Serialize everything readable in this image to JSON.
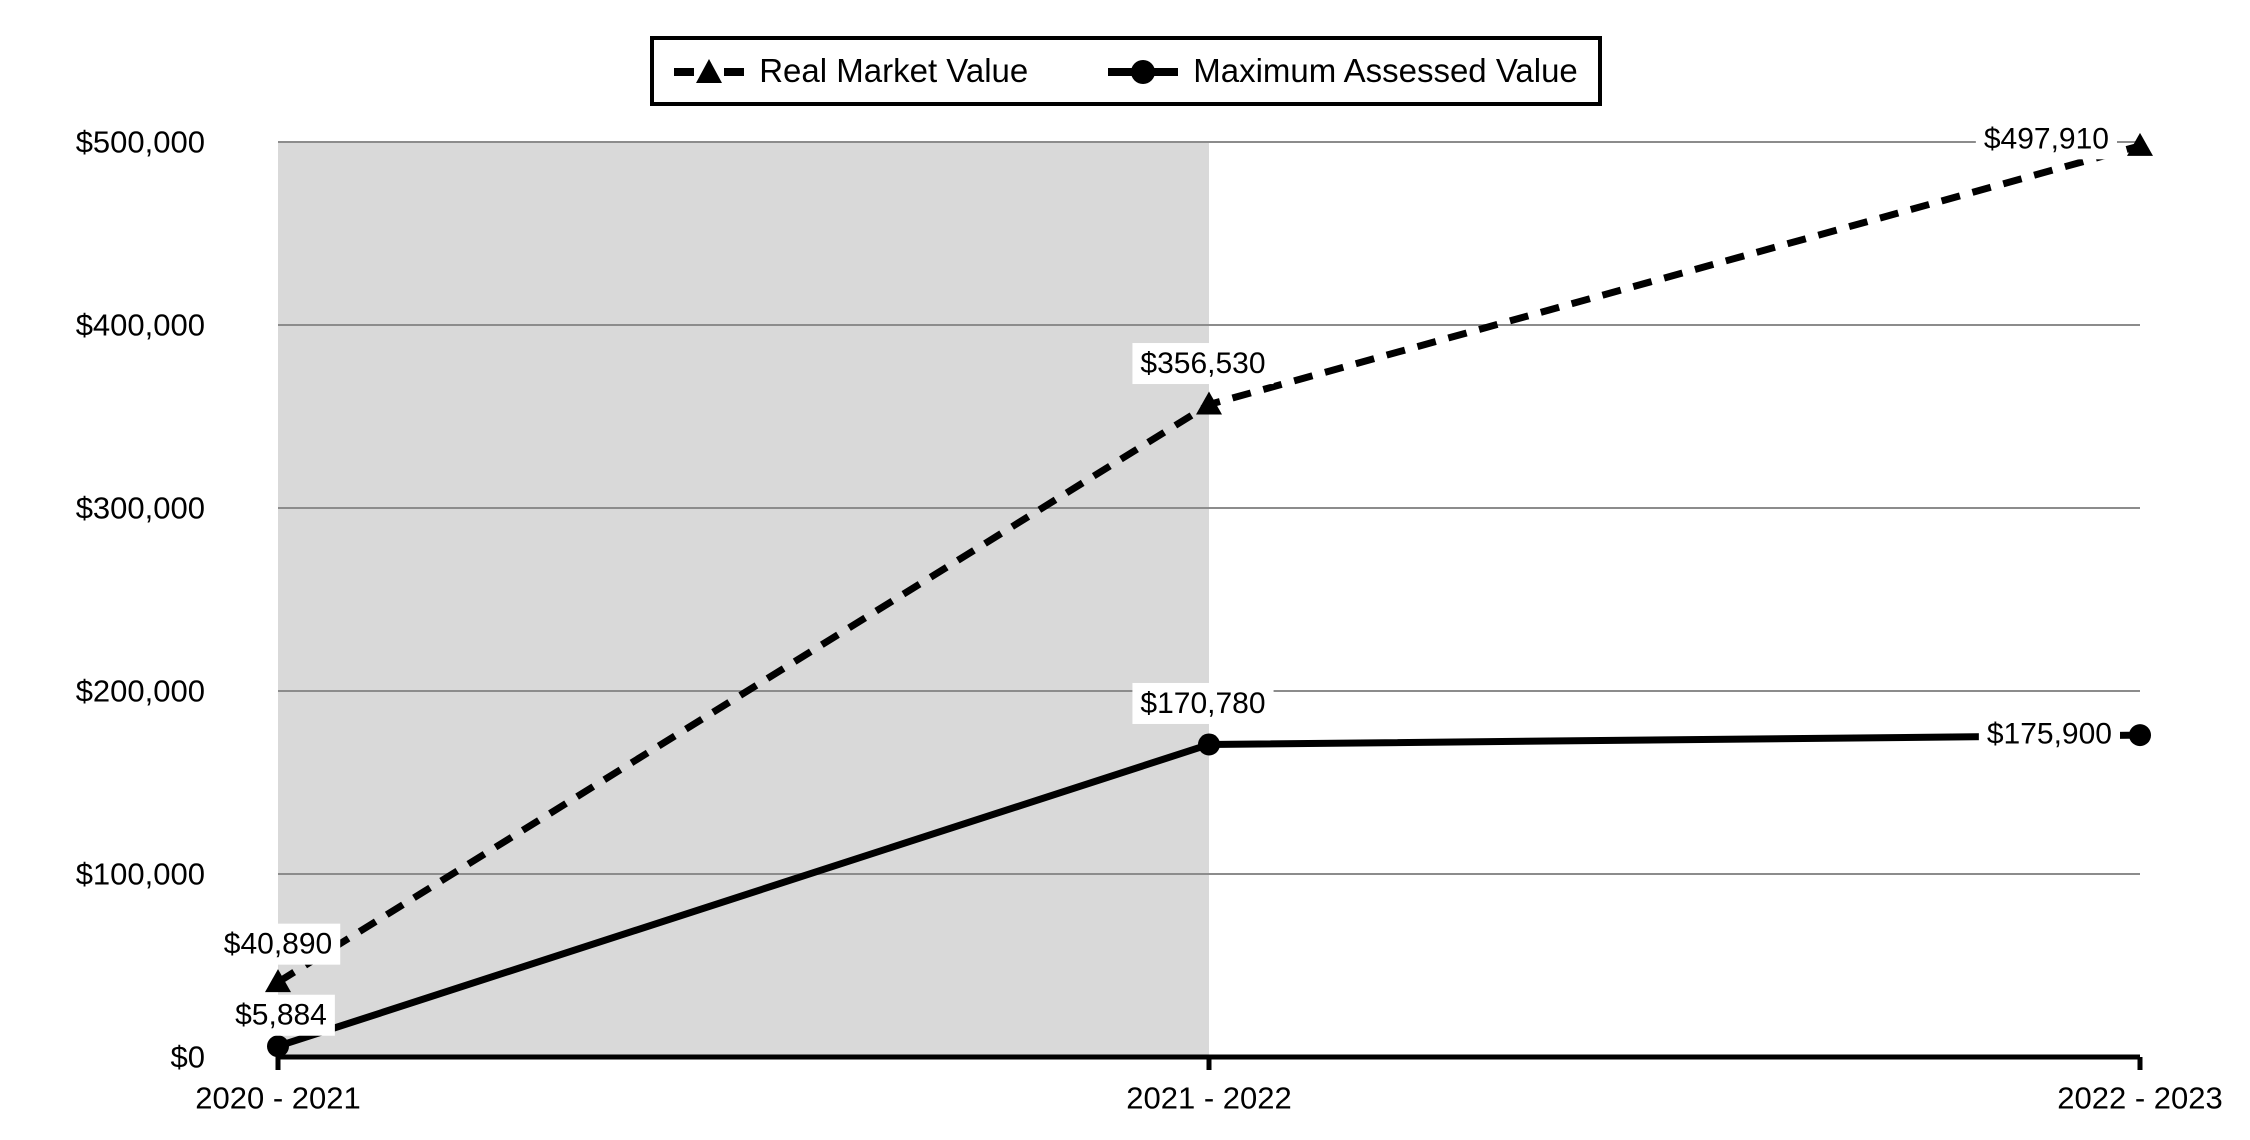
{
  "chart_data": {
    "type": "line",
    "title": "",
    "xlabel": "",
    "ylabel": "",
    "categories": [
      "2020 - 2021",
      "2021 - 2022",
      "2022 - 2023"
    ],
    "series": [
      {
        "name": "Real Market Value",
        "values": [
          40890,
          356530,
          497910
        ],
        "labels": [
          "$40,890",
          "$356,530",
          "$497,910"
        ],
        "line_style": "dashed",
        "marker": "triangle",
        "color": "#000000"
      },
      {
        "name": "Maximum Assessed Value",
        "values": [
          5884,
          170780,
          175900
        ],
        "labels": [
          "$5,884",
          "$170,780",
          "$175,900"
        ],
        "line_style": "solid",
        "marker": "circle",
        "color": "#000000"
      }
    ],
    "y_tick_values": [
      0,
      100000,
      200000,
      300000,
      400000,
      500000
    ],
    "y_tick_labels": [
      "$0",
      "$100,000",
      "$200,000",
      "$300,000",
      "$400,000",
      "$500,000"
    ],
    "ylim": [
      0,
      500000
    ],
    "grid": true,
    "legend_position": "top-center",
    "shaded_region": {
      "from_category_index": 0,
      "to_category_index": 1,
      "color": "#d9d9d9"
    },
    "colors": {
      "line": "#000000",
      "gridline": "#8c8c8c",
      "axis": "#000000",
      "text": "#000000",
      "label_background": "#ffffff",
      "background": "#ffffff"
    }
  }
}
